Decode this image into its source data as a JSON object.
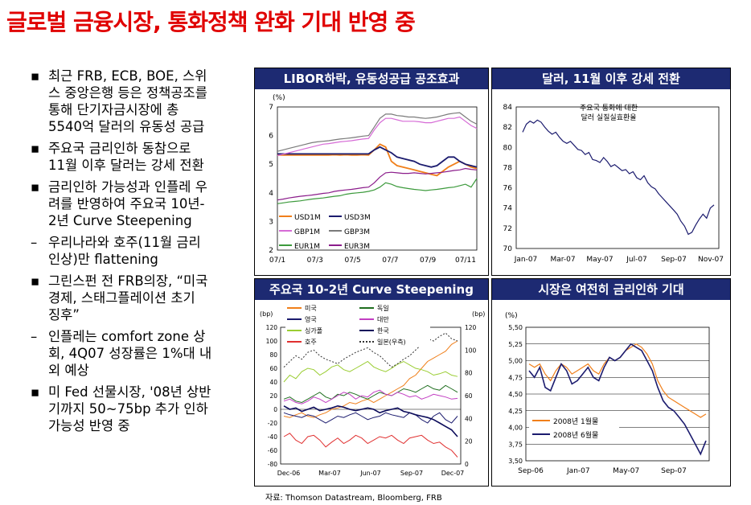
{
  "title": "글로벌 금융시장, 통화정책 완화 기대 반영 중",
  "bullets": [
    {
      "mark": "▪",
      "lines": [
        "최근 FRB, ECB, BOE, 스위",
        "스 중앙은행 등은 정책공조를",
        "통해 단기자금시장에 총",
        "5540억 달러의 유동성 공급"
      ]
    },
    {
      "mark": "▪",
      "lines": [
        "주요국 금리인하 동참으로",
        "11월 이후 달러는 강세 전환"
      ]
    },
    {
      "mark": "▪",
      "lines": [
        "금리인하 가능성과 인플레 우",
        "려를 반영하여 주요국 10년-",
        "2년 Curve Steepening"
      ]
    },
    {
      "mark": "–",
      "lines": [
        "우리나라와 호주(11월 금리",
        "인상)만 flattening"
      ]
    },
    {
      "mark": "▪",
      "lines": [
        "그린스펀 전 FRB의장, “미국",
        "경제, 스태그플레이션 초기",
        "징후”"
      ]
    },
    {
      "mark": "–",
      "lines": [
        "인플레는 comfort zone 상",
        "회, 4Q07 성장률은 1%대 내",
        "외 예상"
      ]
    },
    {
      "mark": "▪",
      "lines": [
        "미 Fed 선물시장, '08년 상반",
        "기까지 50~75bp 추가 인하",
        "가능성 반영 중"
      ]
    }
  ],
  "source": "자료: Thomson Datastream, Bloomberg, FRB",
  "colors": {
    "header": "#1d2a72",
    "title": "#e00000"
  },
  "chart_data": [
    {
      "type": "line",
      "title": "LIBOR하락, 유동성공급 공조효과",
      "ylabel": "(%)",
      "ylim": [
        2,
        7
      ],
      "yticks": [
        "2",
        "3",
        "4",
        "5",
        "6",
        "7"
      ],
      "xticks": [
        "07/1",
        "07/3",
        "07/5",
        "07/7",
        "07/9",
        "07/11"
      ],
      "legend_position": "bottom-left",
      "series": [
        {
          "name": "USD1M",
          "color": "#f07f1a",
          "values": [
            5.32,
            5.32,
            5.32,
            5.32,
            5.32,
            5.32,
            5.32,
            5.32,
            5.32,
            5.32,
            5.33,
            5.32,
            5.33,
            5.32,
            5.32,
            5.33,
            5.32,
            5.5,
            5.7,
            5.6,
            5.1,
            4.95,
            4.9,
            4.85,
            4.8,
            4.75,
            4.7,
            4.65,
            4.6,
            4.75,
            4.9,
            5.0,
            5.1,
            5.0,
            4.9,
            4.85
          ]
        },
        {
          "name": "USD3M",
          "color": "#1b1b6e",
          "values": [
            5.36,
            5.36,
            5.36,
            5.36,
            5.36,
            5.36,
            5.36,
            5.36,
            5.36,
            5.36,
            5.36,
            5.36,
            5.36,
            5.36,
            5.36,
            5.36,
            5.36,
            5.5,
            5.6,
            5.5,
            5.4,
            5.25,
            5.2,
            5.15,
            5.1,
            5.0,
            4.95,
            4.9,
            4.95,
            5.1,
            5.25,
            5.25,
            5.1,
            5.0,
            4.95,
            4.9
          ]
        },
        {
          "name": "GBP1M",
          "color": "#d66bd6",
          "values": [
            5.3,
            5.35,
            5.4,
            5.45,
            5.5,
            5.55,
            5.6,
            5.65,
            5.7,
            5.72,
            5.75,
            5.78,
            5.8,
            5.82,
            5.85,
            5.88,
            5.9,
            6.2,
            6.45,
            6.6,
            6.6,
            6.55,
            6.5,
            6.5,
            6.5,
            6.48,
            6.45,
            6.45,
            6.5,
            6.55,
            6.6,
            6.6,
            6.65,
            6.5,
            6.35,
            6.25
          ]
        },
        {
          "name": "GBP3M",
          "color": "#7a7a7a",
          "values": [
            5.45,
            5.5,
            5.55,
            5.6,
            5.65,
            5.7,
            5.75,
            5.78,
            5.8,
            5.82,
            5.85,
            5.88,
            5.9,
            5.92,
            5.95,
            5.98,
            6.0,
            6.3,
            6.6,
            6.75,
            6.75,
            6.7,
            6.68,
            6.65,
            6.65,
            6.62,
            6.6,
            6.62,
            6.65,
            6.7,
            6.75,
            6.78,
            6.8,
            6.65,
            6.5,
            6.4
          ]
        },
        {
          "name": "EUR1M",
          "color": "#3c9a3c",
          "values": [
            3.62,
            3.65,
            3.68,
            3.7,
            3.72,
            3.75,
            3.78,
            3.8,
            3.82,
            3.85,
            3.88,
            3.9,
            3.95,
            3.98,
            4.0,
            4.02,
            4.05,
            4.1,
            4.2,
            4.35,
            4.3,
            4.22,
            4.18,
            4.15,
            4.12,
            4.1,
            4.08,
            4.1,
            4.12,
            4.15,
            4.18,
            4.2,
            4.25,
            4.3,
            4.2,
            4.5
          ]
        },
        {
          "name": "EUR3M",
          "color": "#8b1c8b",
          "values": [
            3.75,
            3.78,
            3.82,
            3.85,
            3.88,
            3.9,
            3.92,
            3.95,
            3.98,
            4.0,
            4.05,
            4.08,
            4.1,
            4.12,
            4.15,
            4.18,
            4.2,
            4.35,
            4.55,
            4.7,
            4.72,
            4.7,
            4.68,
            4.68,
            4.7,
            4.68,
            4.66,
            4.68,
            4.7,
            4.72,
            4.75,
            4.78,
            4.8,
            4.85,
            4.82,
            4.8
          ]
        }
      ]
    },
    {
      "type": "line",
      "title": "달러, 11월 이후 강세 전환",
      "annotation": [
        "주요국 통화에 대한",
        "달러 실질실효환율"
      ],
      "ylim": [
        70,
        84
      ],
      "yticks": [
        "70",
        "72",
        "74",
        "76",
        "78",
        "80",
        "82",
        "84"
      ],
      "xticks": [
        "Jan-07",
        "Mar-07",
        "May-07",
        "Jul-07",
        "Sep-07",
        "Nov-07"
      ],
      "series": [
        {
          "name": "",
          "color": "#1b1b6e",
          "values": [
            81.5,
            82.3,
            82.6,
            82.4,
            82.7,
            82.5,
            82.0,
            81.6,
            81.3,
            81.5,
            81.0,
            80.6,
            80.4,
            80.6,
            80.2,
            79.8,
            79.7,
            79.3,
            79.5,
            78.8,
            78.7,
            78.5,
            79.0,
            78.6,
            78.1,
            78.3,
            78.0,
            77.7,
            77.8,
            77.4,
            77.6,
            77.0,
            76.8,
            77.2,
            76.5,
            76.1,
            75.9,
            75.4,
            75.0,
            74.6,
            74.2,
            73.8,
            73.4,
            72.7,
            72.2,
            71.4,
            71.6,
            72.3,
            72.9,
            73.4,
            73.0,
            74.0,
            74.3
          ]
        }
      ]
    },
    {
      "type": "line",
      "title": "주요국 10-2년 Curve Steepening",
      "ylabel_left": "(bp)",
      "ylabel_right": "(bp)",
      "ylim_left": [
        -80,
        120
      ],
      "ylim_right": [
        0,
        120
      ],
      "yticks_left": [
        "-80",
        "-60",
        "-40",
        "-20",
        "0",
        "20",
        "40",
        "60",
        "80",
        "100",
        "120"
      ],
      "yticks_right": [
        "0",
        "20",
        "40",
        "60",
        "80",
        "100",
        "120"
      ],
      "xticks": [
        "Dec-06",
        "Mar-07",
        "Jun-07",
        "Sep-07",
        "Dec-07"
      ],
      "legend_position": "top",
      "series": [
        {
          "name": "미국",
          "color": "#f07f1a",
          "axis": "left",
          "values": [
            -10,
            -12,
            -8,
            -5,
            -10,
            -12,
            -8,
            -5,
            0,
            2,
            5,
            10,
            8,
            12,
            15,
            10,
            15,
            20,
            25,
            30,
            35,
            45,
            50,
            60,
            70,
            75,
            80,
            85,
            95,
            100
          ]
        },
        {
          "name": "독일",
          "color": "#1f6e1f",
          "axis": "left",
          "values": [
            15,
            18,
            12,
            10,
            15,
            20,
            25,
            18,
            15,
            22,
            20,
            25,
            22,
            18,
            15,
            20,
            25,
            22,
            20,
            25,
            30,
            28,
            25,
            30,
            35,
            30,
            28,
            35,
            30,
            25
          ]
        },
        {
          "name": "영국",
          "color": "#1b1b6e",
          "axis": "left",
          "values": [
            -5,
            -8,
            -10,
            -12,
            -8,
            -10,
            -15,
            -20,
            -15,
            -10,
            -12,
            -8,
            -5,
            -10,
            -15,
            -12,
            -10,
            -5,
            -8,
            -10,
            -12,
            -5,
            -8,
            -15,
            -20,
            -10,
            -5,
            -15,
            -20,
            -10
          ]
        },
        {
          "name": "대만",
          "color": "#c23ec2",
          "axis": "left",
          "values": [
            12,
            15,
            10,
            8,
            12,
            18,
            15,
            10,
            15,
            20,
            25,
            22,
            15,
            20,
            18,
            25,
            28,
            22,
            20,
            25,
            22,
            18,
            20,
            15,
            18,
            22,
            20,
            18,
            15,
            16
          ]
        },
        {
          "name": "싱가폴",
          "color": "#9acd32",
          "axis": "left",
          "values": [
            40,
            50,
            45,
            55,
            60,
            58,
            50,
            55,
            62,
            65,
            58,
            55,
            60,
            65,
            70,
            62,
            58,
            55,
            60,
            66,
            70,
            65,
            60,
            58,
            55,
            50,
            52,
            55,
            50,
            48
          ]
        },
        {
          "name": "한국",
          "color": "#0b0b5a",
          "axis": "left",
          "values": [
            5,
            0,
            2,
            -3,
            0,
            3,
            -2,
            0,
            2,
            5,
            3,
            0,
            -2,
            0,
            2,
            0,
            -5,
            -2,
            0,
            2,
            -3,
            -5,
            -8,
            -10,
            -12,
            -15,
            -20,
            -25,
            -30,
            -40
          ]
        },
        {
          "name": "호주",
          "color": "#e03030",
          "axis": "left",
          "values": [
            -40,
            -35,
            -45,
            -50,
            -40,
            -38,
            -45,
            -55,
            -48,
            -42,
            -50,
            -45,
            -38,
            -42,
            -50,
            -45,
            -40,
            -42,
            -38,
            -45,
            -50,
            -42,
            -40,
            -38,
            -45,
            -50,
            -48,
            -55,
            -60,
            -70
          ]
        },
        {
          "name": "일본(우측)",
          "color": "#333333",
          "axis": "right",
          "values": [
            85,
            90,
            95,
            92,
            98,
            100,
            95,
            92,
            90,
            88,
            92,
            95,
            98,
            100,
            102,
            98,
            95,
            90,
            85,
            88,
            92,
            95,
            100,
            105,
            110,
            108,
            112,
            115,
            110,
            108
          ]
        }
      ]
    },
    {
      "type": "line",
      "title": "시장은 여전히 금리인하 기대",
      "ylabel": "(%)",
      "ylim": [
        3.5,
        5.5
      ],
      "yticks": [
        "3,50",
        "3,75",
        "4,00",
        "4,25",
        "4,50",
        "4,75",
        "5,00",
        "5,25",
        "5,50"
      ],
      "xticks": [
        "Sep-06",
        "Jan-07",
        "May-07",
        "Sep-07"
      ],
      "legend_position": "bottom-left",
      "series": [
        {
          "name": "2008년 1월물",
          "color": "#f07f1a",
          "values": [
            4.95,
            4.9,
            4.95,
            4.8,
            4.7,
            4.85,
            4.95,
            4.9,
            4.8,
            4.85,
            4.9,
            4.95,
            4.85,
            4.8,
            4.95,
            5.05,
            5.0,
            5.05,
            5.15,
            5.2,
            5.25,
            5.2,
            5.1,
            4.95,
            4.7,
            4.55,
            4.45,
            4.4,
            4.35,
            4.3,
            4.25,
            4.2,
            4.15,
            4.2
          ]
        },
        {
          "name": "2008년 6월물",
          "color": "#1b1b6e",
          "values": [
            4.85,
            4.75,
            4.9,
            4.6,
            4.55,
            4.75,
            4.95,
            4.85,
            4.65,
            4.7,
            4.8,
            4.9,
            4.75,
            4.7,
            4.9,
            5.05,
            5.0,
            5.05,
            5.15,
            5.25,
            5.2,
            5.15,
            5.0,
            4.85,
            4.6,
            4.4,
            4.3,
            4.25,
            4.15,
            4.05,
            3.9,
            3.75,
            3.6,
            3.8
          ]
        }
      ]
    }
  ]
}
